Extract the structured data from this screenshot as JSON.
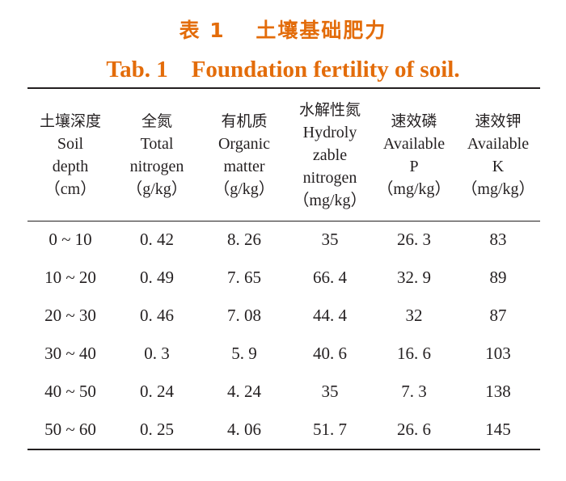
{
  "title": {
    "cn": "表 1　 土壤基础肥力",
    "en": "Tab. 1    Foundation fertility of soil."
  },
  "table": {
    "columns": [
      {
        "lines": [
          "土壤深度",
          "Soil",
          "depth",
          "（cm）"
        ]
      },
      {
        "lines": [
          "全氮",
          "Total",
          "nitrogen",
          "（g/kg）"
        ]
      },
      {
        "lines": [
          "有机质",
          "Organic",
          "matter",
          "（g/kg）"
        ]
      },
      {
        "lines": [
          "水解性氮",
          "Hydroly",
          "zable",
          "nitrogen",
          "（mg/kg）"
        ]
      },
      {
        "lines": [
          "速效磷",
          "Available",
          "P",
          "（mg/kg）"
        ]
      },
      {
        "lines": [
          "速效钾",
          "Available",
          "K",
          "（mg/kg）"
        ]
      }
    ],
    "rows": [
      [
        "0 ~ 10",
        "0. 42",
        "8. 26",
        "35",
        "26. 3",
        "83"
      ],
      [
        "10 ~ 20",
        "0. 49",
        "7. 65",
        "66. 4",
        "32. 9",
        "89"
      ],
      [
        "20 ~ 30",
        "0. 46",
        "7. 08",
        "44. 4",
        "32",
        "87"
      ],
      [
        "30 ~ 40",
        "0. 3",
        "5. 9",
        "40. 6",
        "16. 6",
        "103"
      ],
      [
        "40 ~ 50",
        "0. 24",
        "4. 24",
        "35",
        "7. 3",
        "138"
      ],
      [
        "50 ~ 60",
        "0. 25",
        "4. 06",
        "51. 7",
        "26. 6",
        "145"
      ]
    ]
  }
}
